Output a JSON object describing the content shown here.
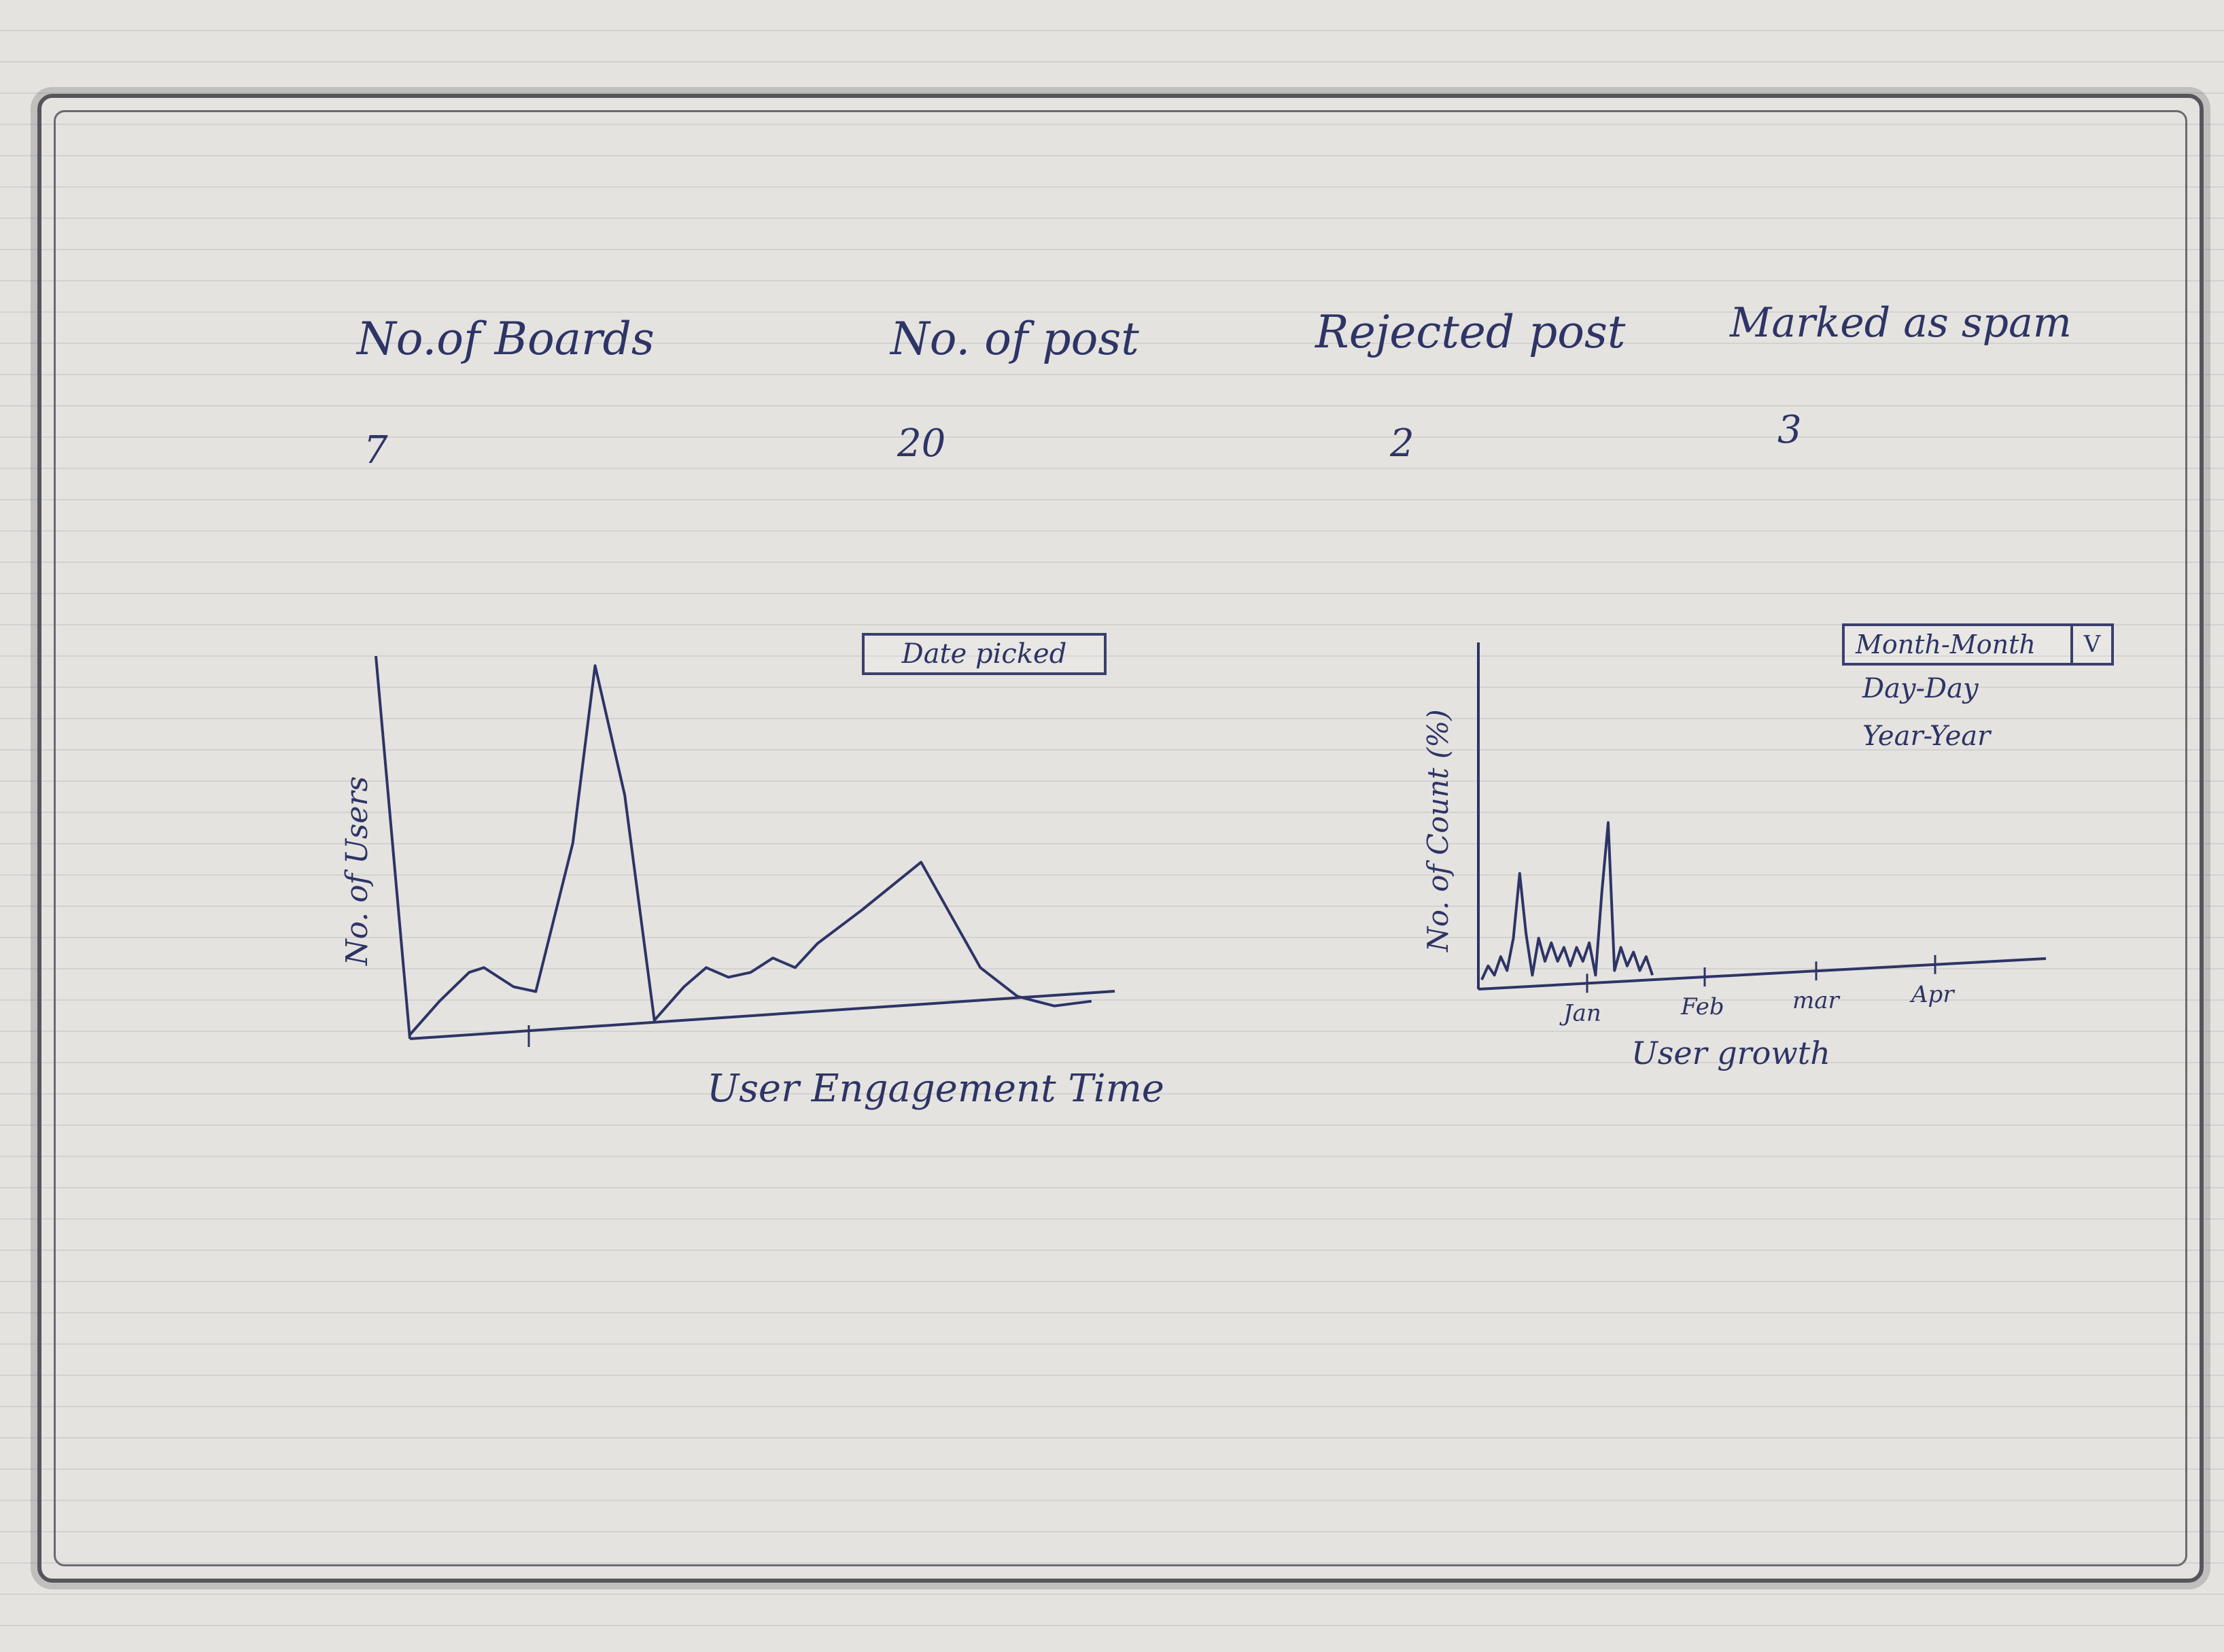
{
  "stats": [
    {
      "label": "No.of Boards",
      "value": "7"
    },
    {
      "label": "No. of post",
      "value": "20"
    },
    {
      "label": "Rejected post",
      "value": "2"
    },
    {
      "label": "Marked as spam",
      "value": "3"
    }
  ],
  "engagement_chart": {
    "date_picker_label": "Date picked"
  },
  "growth_chart": {
    "period_select": {
      "selected": "Month-Month",
      "caret": "V",
      "options": [
        "Day-Day",
        "Year-Year"
      ]
    }
  },
  "chart_data": [
    {
      "type": "line",
      "xlabel": "User Engagement Time",
      "ylabel": "No. of Users",
      "series": [
        {
          "values": [
            [
              0,
              0
            ],
            [
              4,
              7
            ],
            [
              8,
              13
            ],
            [
              10,
              14
            ],
            [
              14,
              10
            ],
            [
              17,
              9
            ],
            [
              22,
              40
            ],
            [
              25,
              77
            ],
            [
              29,
              50
            ],
            [
              33,
              3
            ],
            [
              37,
              10
            ],
            [
              40,
              14
            ],
            [
              43,
              12
            ],
            [
              46,
              13
            ],
            [
              49,
              16
            ],
            [
              52,
              14
            ],
            [
              55,
              19
            ],
            [
              61,
              26
            ],
            [
              69,
              36
            ],
            [
              73,
              25
            ],
            [
              77,
              14
            ],
            [
              82,
              8
            ],
            [
              87,
              6
            ],
            [
              92,
              7
            ]
          ]
        }
      ]
    },
    {
      "type": "line",
      "xlabel": "User growth",
      "ylabel": "No. of Count (%)",
      "categories": [
        "Jan",
        "Feb",
        "mar",
        "Apr"
      ],
      "series": [
        {
          "values": [
            [
              0,
              1
            ],
            [
              1,
              4
            ],
            [
              2,
              2
            ],
            [
              3,
              6
            ],
            [
              4,
              3
            ],
            [
              5,
              10
            ],
            [
              6,
              24
            ],
            [
              7,
              11
            ],
            [
              8,
              2
            ],
            [
              9,
              10
            ],
            [
              10,
              5
            ],
            [
              11,
              9
            ],
            [
              12,
              5
            ],
            [
              13,
              8
            ],
            [
              14,
              4
            ],
            [
              15,
              8
            ],
            [
              16,
              5
            ],
            [
              17,
              9
            ],
            [
              18,
              2
            ],
            [
              19,
              20
            ],
            [
              20,
              35
            ],
            [
              21,
              3
            ],
            [
              22,
              8
            ],
            [
              23,
              4
            ],
            [
              24,
              7
            ],
            [
              25,
              3
            ],
            [
              26,
              6
            ],
            [
              27,
              2
            ]
          ]
        }
      ]
    }
  ]
}
